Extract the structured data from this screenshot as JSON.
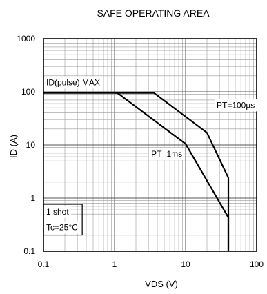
{
  "chart_data": {
    "type": "line",
    "title": "SAFE OPERATING AREA",
    "xlabel": "VDS  (V)",
    "ylabel": "ID  (A)",
    "x_scale": "log",
    "y_scale": "log",
    "xlim": [
      0.1,
      100
    ],
    "ylim": [
      0.1,
      1000
    ],
    "x_ticks": [
      "0.1",
      "1",
      "10",
      "100"
    ],
    "y_ticks": [
      "0.1",
      "1",
      "10",
      "100",
      "1000"
    ],
    "grid": true,
    "series": [
      {
        "name": "ID(pulse) MAX",
        "x": [
          0.1,
          1.0
        ],
        "y": [
          95,
          95
        ]
      },
      {
        "name": "PT=100µs",
        "x": [
          1.0,
          3.6,
          20,
          40,
          40
        ],
        "y": [
          95,
          95,
          17,
          2.4,
          0.1
        ]
      },
      {
        "name": "PT=1ms",
        "x": [
          1.0,
          1.1,
          10,
          40,
          40
        ],
        "y": [
          95,
          95,
          10.5,
          0.43,
          0.1
        ]
      }
    ],
    "annotations": [
      {
        "text": "ID(pulse)  MAX",
        "x": 0.1,
        "y": 150
      },
      {
        "text": "PT=100µs",
        "x": 25,
        "y": 56
      },
      {
        "text": "PT=1ms",
        "x": 3,
        "y": 6.8
      },
      {
        "text": "1 shot",
        "x": 0.1,
        "y": 0.55
      },
      {
        "text": "Tc=25°C",
        "x": 0.1,
        "y": 0.28
      }
    ]
  }
}
